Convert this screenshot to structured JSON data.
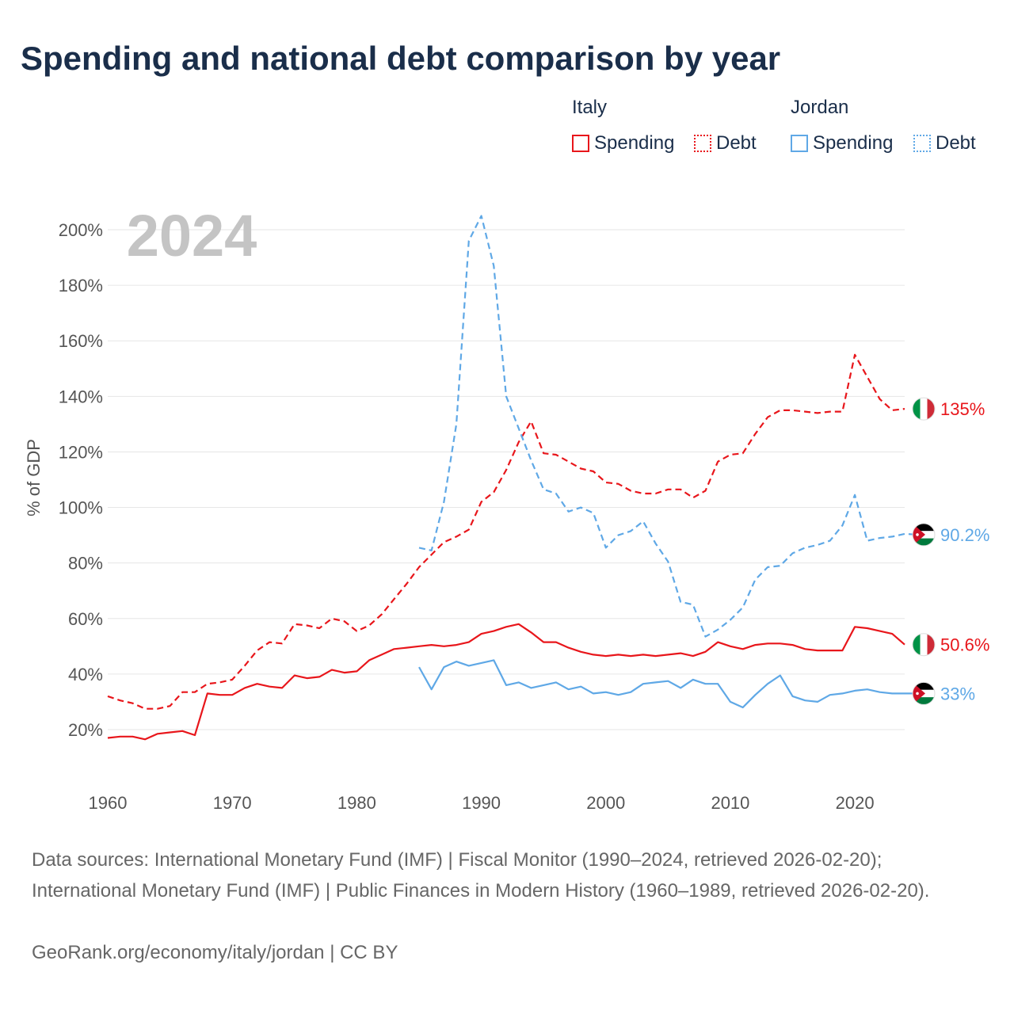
{
  "title": "Spending and national debt comparison by year",
  "year_label": "2024",
  "legend": {
    "italy": "Italy",
    "jordan": "Jordan",
    "spending": "Spending",
    "debt": "Debt"
  },
  "colors": {
    "italy": "#e8161b",
    "jordan": "#5fa8e6"
  },
  "footer": {
    "sources": "Data sources: International Monetary Fund (IMF) | Fiscal Monitor (1990–2024, retrieved 2026-02-20); International Monetary Fund (IMF) | Public Finances in Modern History (1960–1989, retrieved 2026-02-20).",
    "credit": "GeoRank.org/economy/italy/jordan | CC BY"
  },
  "chart_data": {
    "type": "line",
    "title": "Spending and national debt comparison by year",
    "xlabel": "",
    "ylabel": "% of GDP",
    "xlim": [
      1960,
      2024
    ],
    "ylim": [
      10,
      205
    ],
    "x_ticks": [
      "1960",
      "1970",
      "1980",
      "1990",
      "2000",
      "2010",
      "2020"
    ],
    "y_ticks": [
      "20%",
      "40%",
      "60%",
      "80%",
      "100%",
      "120%",
      "140%",
      "160%",
      "180%",
      "200%"
    ],
    "series": [
      {
        "name": "Italy Debt",
        "country": "italy",
        "style": "dashed",
        "start": 1960,
        "end_label": "135%",
        "values": [
          32,
          30.5,
          29.5,
          27.5,
          27.5,
          28.5,
          33.5,
          33.5,
          36.5,
          37,
          38,
          43,
          48.5,
          51.5,
          51,
          58,
          57.5,
          56.5,
          60,
          59,
          55.5,
          57.5,
          61.5,
          67,
          72.5,
          78.5,
          83,
          87.5,
          89.5,
          92,
          102,
          105.5,
          113.5,
          123.5,
          131,
          119.5,
          119,
          116.5,
          114,
          113,
          109,
          108.5,
          106,
          105,
          105,
          106.5,
          106.5,
          103.5,
          106,
          116.5,
          119,
          119.5,
          126.5,
          132.5,
          135,
          135,
          134.5,
          134,
          134.5,
          134.5,
          155,
          147,
          139,
          135,
          135.5
        ]
      },
      {
        "name": "Italy Spending",
        "country": "italy",
        "style": "solid",
        "start": 1960,
        "end_label": "50.6%",
        "values": [
          17,
          17.5,
          17.5,
          16.5,
          18.5,
          19,
          19.5,
          18,
          33,
          32.5,
          32.5,
          35,
          36.5,
          35.5,
          35,
          39.5,
          38.5,
          39,
          41.5,
          40.5,
          41,
          45,
          47,
          49,
          49.5,
          50,
          50.5,
          50,
          50.5,
          51.5,
          54.5,
          55.5,
          57,
          58,
          55,
          51.5,
          51.5,
          49.5,
          48,
          47,
          46.5,
          47,
          46.5,
          47,
          46.5,
          47,
          47.5,
          46.5,
          48,
          51.5,
          50,
          49,
          50.5,
          51,
          51,
          50.5,
          49,
          48.5,
          48.5,
          48.5,
          57,
          56.5,
          55.5,
          54.5,
          50.6
        ]
      },
      {
        "name": "Jordan Debt",
        "country": "jordan",
        "style": "dashed",
        "start": 1985,
        "end_label": "90.2%",
        "values": [
          85.5,
          84.5,
          102,
          130,
          196,
          205,
          187,
          140,
          128.5,
          117,
          106.5,
          105,
          98.5,
          100,
          98,
          85.5,
          90,
          91.5,
          95,
          87,
          80.5,
          66,
          65,
          53.5,
          56,
          59.5,
          64,
          74,
          78.5,
          79,
          83.5,
          85.5,
          86.5,
          88,
          93.5,
          104.5,
          88,
          89,
          89.5,
          90.5,
          90.2
        ]
      },
      {
        "name": "Jordan Spending",
        "country": "jordan",
        "style": "solid",
        "start": 1985,
        "end_label": "33%",
        "values": [
          42.5,
          34.5,
          42.5,
          44.5,
          43,
          44,
          45,
          36,
          37,
          35,
          36,
          37,
          34.5,
          35.5,
          33,
          33.5,
          32.5,
          33.5,
          36.5,
          37,
          37.5,
          35,
          38,
          36.5,
          36.5,
          30,
          28,
          32.5,
          36.5,
          39.5,
          32,
          30.5,
          30,
          32.5,
          33,
          34,
          34.5,
          33.5,
          33,
          33,
          33
        ]
      }
    ]
  }
}
